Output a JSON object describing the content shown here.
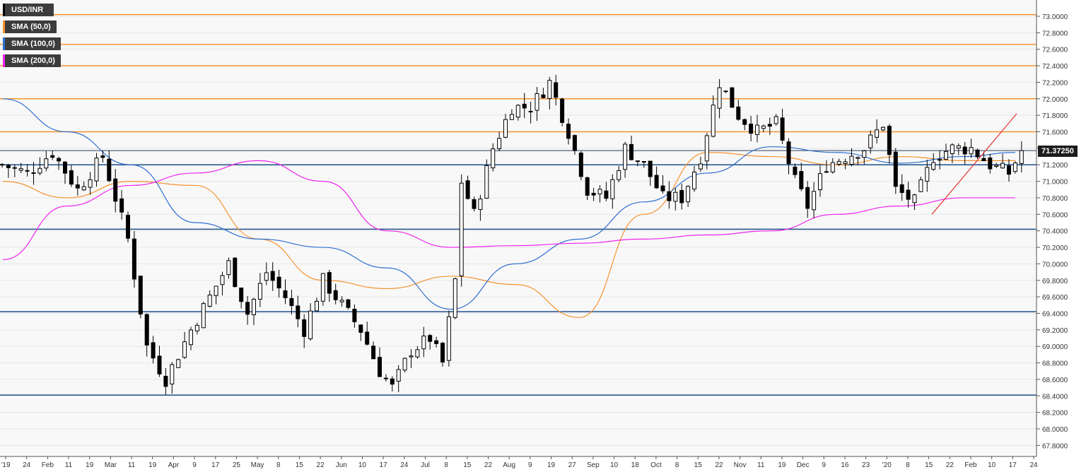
{
  "chart_data": {
    "type": "candlestick",
    "symbol": "USD/INR",
    "legend": [
      {
        "label": "USD/INR",
        "color": "#000000"
      },
      {
        "label": "SMA (50,0)",
        "color": "#f5922f"
      },
      {
        "label": "SMA (100,0)",
        "color": "#2f6fd0"
      },
      {
        "label": "SMA (200,0)",
        "color": "#ee22ee"
      }
    ],
    "last_price": "71.37250",
    "ylim": [
      67.7,
      73.1
    ],
    "y_ticks": [
      "73.0000",
      "72.8000",
      "72.6000",
      "72.4000",
      "72.2000",
      "72.0000",
      "71.8000",
      "71.6000",
      "71.4000",
      "71.2000",
      "71.0000",
      "70.8000",
      "70.6000",
      "70.4000",
      "70.2000",
      "70.0000",
      "69.8000",
      "69.6000",
      "69.4000",
      "69.2000",
      "69.0000",
      "68.8000",
      "68.6000",
      "68.4000",
      "68.2000",
      "68.0000",
      "67.8000"
    ],
    "x_ticks": [
      "'19",
      "24",
      "Feb",
      "11",
      "19",
      "Mar",
      "11",
      "19",
      "Apr",
      "9",
      "17",
      "25",
      "May",
      "8",
      "15",
      "22",
      "Jun",
      "10",
      "17",
      "24",
      "Jul",
      "8",
      "15",
      "22",
      "Aug",
      "9",
      "19",
      "27",
      "Sep",
      "10",
      "18",
      "Oct",
      "8",
      "15",
      "22",
      "Nov",
      "11",
      "19",
      "Dec",
      "9",
      "16",
      "23",
      "'20",
      "8",
      "15",
      "22",
      "Feb",
      "10",
      "17",
      "24"
    ],
    "resistance_levels": [
      73.02,
      72.66,
      72.4,
      72.0,
      71.6
    ],
    "support_levels": [
      71.2,
      70.42,
      69.42,
      68.41
    ],
    "sma50_anchors": [
      [
        0,
        71.0
      ],
      [
        5,
        70.8
      ],
      [
        10,
        71.0
      ],
      [
        15,
        70.95
      ],
      [
        20,
        70.3
      ],
      [
        25,
        69.8
      ],
      [
        30,
        69.7
      ],
      [
        35,
        69.85
      ],
      [
        40,
        69.75
      ],
      [
        45,
        69.35
      ],
      [
        50,
        70.6
      ],
      [
        55,
        71.35
      ],
      [
        60,
        71.3
      ],
      [
        65,
        71.2
      ],
      [
        70,
        71.3
      ],
      [
        75,
        71.25
      ],
      [
        79,
        71.25
      ]
    ],
    "sma100_anchors": [
      [
        0,
        72.0
      ],
      [
        5,
        71.6
      ],
      [
        10,
        71.2
      ],
      [
        15,
        70.5
      ],
      [
        20,
        70.3
      ],
      [
        25,
        70.2
      ],
      [
        30,
        69.95
      ],
      [
        35,
        69.45
      ],
      [
        40,
        70.0
      ],
      [
        45,
        70.3
      ],
      [
        50,
        70.75
      ],
      [
        55,
        71.1
      ],
      [
        60,
        71.42
      ],
      [
        65,
        71.35
      ],
      [
        70,
        71.22
      ],
      [
        75,
        71.3
      ],
      [
        79,
        71.35
      ]
    ],
    "sma200_anchors": [
      [
        0,
        70.05
      ],
      [
        5,
        70.7
      ],
      [
        10,
        70.95
      ],
      [
        15,
        71.1
      ],
      [
        20,
        71.25
      ],
      [
        25,
        71.0
      ],
      [
        30,
        70.4
      ],
      [
        35,
        70.2
      ],
      [
        40,
        70.22
      ],
      [
        45,
        70.25
      ],
      [
        50,
        70.3
      ],
      [
        55,
        70.35
      ],
      [
        60,
        70.4
      ],
      [
        65,
        70.6
      ],
      [
        70,
        70.7
      ],
      [
        75,
        70.8
      ],
      [
        79,
        70.8
      ]
    ],
    "trendline": [
      [
        70.6,
        71.82
      ]
    ],
    "price_path": [
      [
        0,
        71.2
      ],
      [
        4,
        71.1
      ],
      [
        8,
        71.35
      ],
      [
        12,
        70.9
      ],
      [
        16,
        71.3
      ],
      [
        20,
        70.3
      ],
      [
        23,
        69.0
      ],
      [
        26,
        68.6
      ],
      [
        30,
        69.2
      ],
      [
        33,
        69.6
      ],
      [
        36,
        70.0
      ],
      [
        39,
        69.4
      ],
      [
        42,
        69.9
      ],
      [
        45,
        69.6
      ],
      [
        48,
        69.2
      ],
      [
        51,
        69.8
      ],
      [
        54,
        69.5
      ],
      [
        57,
        69.2
      ],
      [
        60,
        68.7
      ],
      [
        62,
        68.5
      ],
      [
        65,
        68.95
      ],
      [
        68,
        69.1
      ],
      [
        70,
        68.8
      ],
      [
        72,
        69.8
      ],
      [
        73,
        71.0
      ],
      [
        75,
        70.6
      ],
      [
        78,
        71.4
      ],
      [
        81,
        71.9
      ],
      [
        84,
        71.9
      ],
      [
        87,
        72.2
      ],
      [
        90,
        71.6
      ],
      [
        93,
        70.9
      ],
      [
        96,
        70.8
      ],
      [
        99,
        71.4
      ],
      [
        102,
        71.2
      ],
      [
        105,
        70.8
      ],
      [
        108,
        70.8
      ],
      [
        111,
        71.3
      ],
      [
        114,
        72.2
      ],
      [
        117,
        71.8
      ],
      [
        120,
        71.6
      ],
      [
        123,
        71.7
      ],
      [
        126,
        71.0
      ],
      [
        128,
        70.7
      ],
      [
        131,
        71.2
      ],
      [
        134,
        71.3
      ],
      [
        137,
        71.4
      ],
      [
        140,
        71.7
      ],
      [
        142,
        70.9
      ],
      [
        145,
        70.75
      ],
      [
        148,
        71.3
      ],
      [
        151,
        71.4
      ],
      [
        154,
        71.4
      ],
      [
        157,
        71.2
      ],
      [
        160,
        71.1
      ],
      [
        162,
        71.37
      ]
    ]
  }
}
